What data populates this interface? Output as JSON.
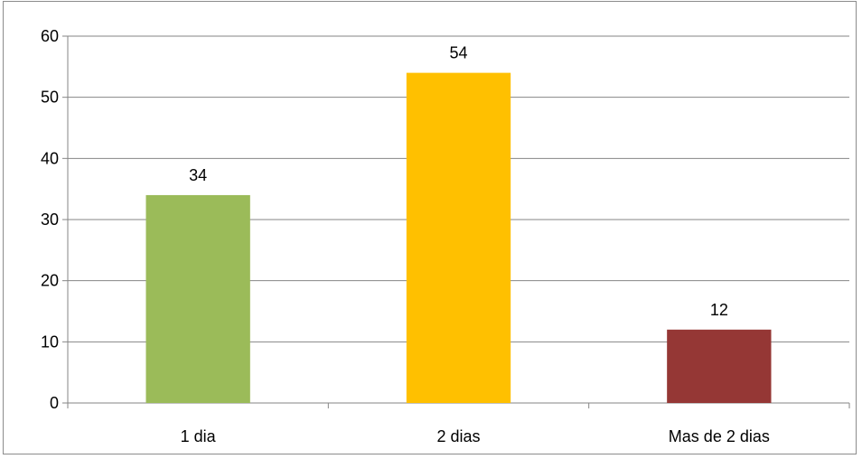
{
  "chart_data": {
    "type": "bar",
    "categories": [
      "1 dia",
      "2 dias",
      "Mas de 2 dias"
    ],
    "values": [
      34,
      54,
      12
    ],
    "data_labels": [
      "34",
      "54",
      "12"
    ],
    "bar_colors": [
      "#9bbb59",
      "#ffc000",
      "#953735"
    ],
    "ylim": [
      0,
      60
    ],
    "y_ticks": [
      0,
      10,
      20,
      30,
      40,
      50,
      60
    ],
    "y_tick_labels": [
      "0",
      "10",
      "20",
      "30",
      "40",
      "50",
      "60"
    ],
    "grid": true,
    "grid_color": "#868686",
    "legend": "none"
  }
}
